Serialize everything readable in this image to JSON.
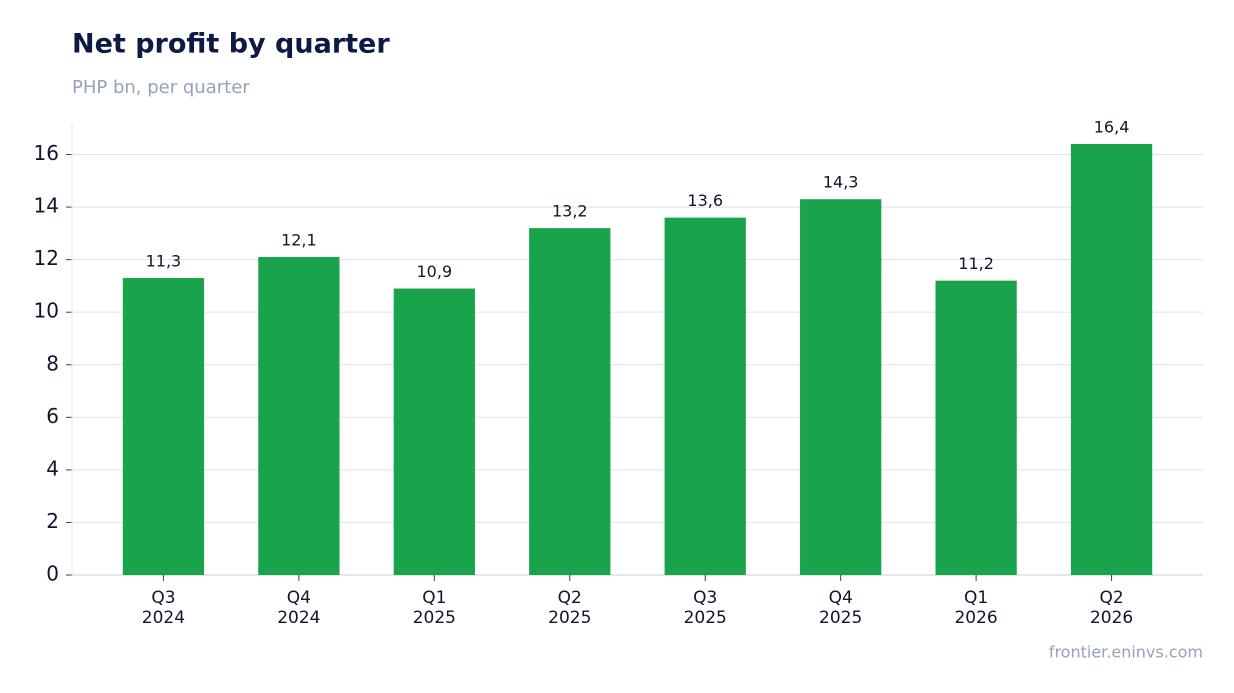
{
  "chart_data": {
    "type": "bar",
    "title": "Net profit by quarter",
    "subtitle": "PHP bn, per quarter",
    "source": "frontier.eninvs.com",
    "categories": [
      "Q3 2024",
      "Q4 2024",
      "Q1 2025",
      "Q2 2025",
      "Q3 2025",
      "Q4 2025",
      "Q1 2026",
      "Q2 2026"
    ],
    "values": [
      11.3,
      12.1,
      10.9,
      13.2,
      13.6,
      14.3,
      11.2,
      16.4
    ],
    "value_labels": [
      "11,3",
      "12,1",
      "10,9",
      "13,2",
      "13,6",
      "14,3",
      "11,2",
      "16,4"
    ],
    "color": "#19a34a",
    "ylim": [
      0,
      17.2
    ],
    "yticks": [
      0,
      2,
      4,
      6,
      8,
      10,
      12,
      14,
      16
    ],
    "grid": true
  }
}
